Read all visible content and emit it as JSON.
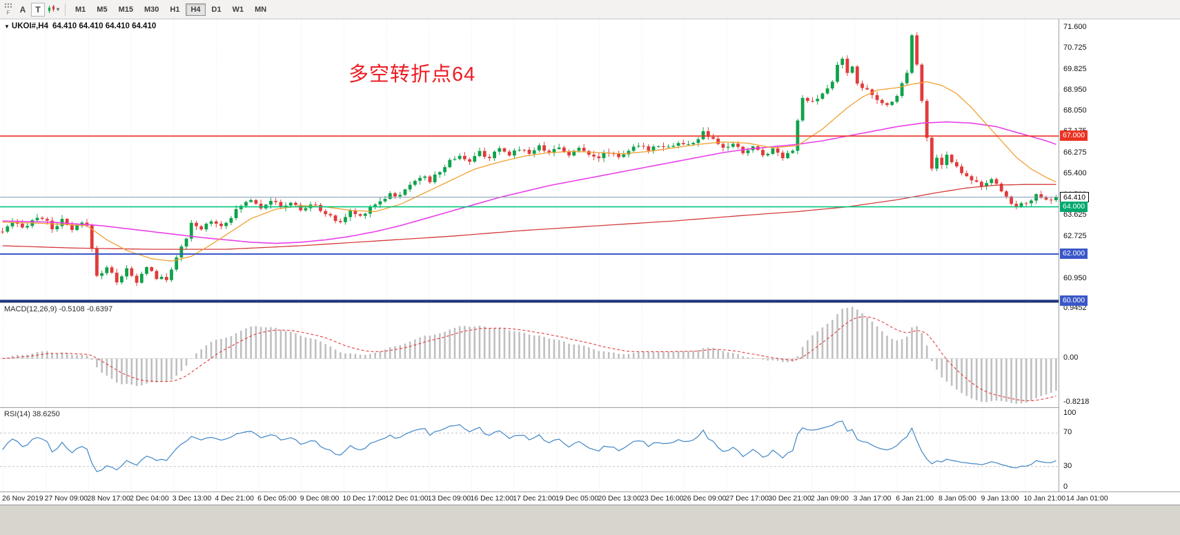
{
  "toolbar": {
    "corner_label": "F",
    "arrow_tool_label": "A",
    "text_tool_label": "T",
    "timeframes": [
      "M1",
      "M5",
      "M15",
      "M30",
      "H1",
      "H4",
      "D1",
      "W1",
      "MN"
    ],
    "active_timeframe": "H4"
  },
  "chart_data": {
    "type": "candlestick",
    "symbol_label": "UKOI#,H4",
    "ohlc_label": "64.410 64.410 64.410 64.410",
    "last_price": 64.41,
    "bars_total": 213,
    "annotation": {
      "text": "多空转折点64",
      "color": "#ed1c24"
    },
    "colors": {
      "up": "#0fa24a",
      "down": "#e13b3b",
      "ma_fast": "#f0a030",
      "ma_mid": "#e93ee9",
      "ma_slow": "#d43b3b",
      "grid": "#ebebeb"
    },
    "price_axis": {
      "min": 59.95,
      "max": 71.95,
      "ticks": [
        71.6,
        70.725,
        69.825,
        68.95,
        68.05,
        67.175,
        66.275,
        65.4,
        64.5,
        63.625,
        62.725,
        61.85,
        60.95,
        60.075
      ]
    },
    "hlines": [
      {
        "price": 67.0,
        "label": "67.000",
        "color": "#ea3323",
        "width": 1.6,
        "tag_bg": "#ea3323",
        "tag_fg": "#ffffff"
      },
      {
        "price": 64.41,
        "label": "64.410",
        "color": "#7e99b0",
        "width": 1,
        "tag_bg": "#ffffff",
        "tag_fg": "#000000",
        "tag_border": "#000000"
      },
      {
        "price": 64.0,
        "label": "64.000",
        "color": "#00c57e",
        "width": 1.6,
        "tag_bg": "#00a86d",
        "tag_fg": "#ffffff"
      },
      {
        "price": 62.0,
        "label": "62.000",
        "color": "#3a57c8",
        "width": 2,
        "tag_bg": "#3a57c8",
        "tag_fg": "#ffffff"
      },
      {
        "price": 60.0,
        "label": "60.000",
        "color": "#20367f",
        "width": 4,
        "tag_bg": "#3a57c8",
        "tag_fg": "#ffffff"
      }
    ],
    "price_path": [
      [
        0,
        62.95
      ],
      [
        2,
        63.3
      ],
      [
        4,
        63.1
      ],
      [
        6,
        63.45
      ],
      [
        8,
        63.55
      ],
      [
        10,
        63.1
      ],
      [
        12,
        63.4
      ],
      [
        14,
        63.0
      ],
      [
        16,
        63.3
      ],
      [
        17,
        63.15
      ],
      [
        18,
        62.3
      ],
      [
        19,
        61.05
      ],
      [
        21,
        61.45
      ],
      [
        23,
        60.85
      ],
      [
        25,
        61.35
      ],
      [
        27,
        60.75
      ],
      [
        29,
        61.5
      ],
      [
        31,
        61.0
      ],
      [
        33,
        60.9
      ],
      [
        35,
        61.9
      ],
      [
        37,
        62.6
      ],
      [
        38,
        63.25
      ],
      [
        40,
        63.05
      ],
      [
        42,
        63.45
      ],
      [
        44,
        63.2
      ],
      [
        46,
        63.6
      ],
      [
        48,
        64.05
      ],
      [
        50,
        64.35
      ],
      [
        52,
        64.0
      ],
      [
        54,
        64.3
      ],
      [
        56,
        63.95
      ],
      [
        58,
        64.2
      ],
      [
        60,
        63.85
      ],
      [
        62,
        64.1
      ],
      [
        64,
        63.9
      ],
      [
        66,
        63.55
      ],
      [
        68,
        63.35
      ],
      [
        70,
        63.8
      ],
      [
        72,
        63.6
      ],
      [
        74,
        64.0
      ],
      [
        76,
        64.25
      ],
      [
        78,
        64.55
      ],
      [
        80,
        64.45
      ],
      [
        82,
        65.0
      ],
      [
        84,
        65.3
      ],
      [
        86,
        65.1
      ],
      [
        88,
        65.5
      ],
      [
        90,
        65.95
      ],
      [
        92,
        66.2
      ],
      [
        94,
        65.9
      ],
      [
        96,
        66.3
      ],
      [
        98,
        66.1
      ],
      [
        100,
        66.4
      ],
      [
        102,
        66.2
      ],
      [
        104,
        66.5
      ],
      [
        106,
        66.3
      ],
      [
        108,
        66.55
      ],
      [
        110,
        66.35
      ],
      [
        112,
        66.5
      ],
      [
        114,
        66.25
      ],
      [
        116,
        66.45
      ],
      [
        118,
        66.3
      ],
      [
        120,
        66.1
      ],
      [
        122,
        66.35
      ],
      [
        124,
        66.15
      ],
      [
        126,
        66.4
      ],
      [
        128,
        66.55
      ],
      [
        130,
        66.45
      ],
      [
        132,
        66.65
      ],
      [
        134,
        66.55
      ],
      [
        136,
        66.7
      ],
      [
        138,
        66.6
      ],
      [
        140,
        66.9
      ],
      [
        141,
        67.15
      ],
      [
        143,
        66.8
      ],
      [
        145,
        66.5
      ],
      [
        147,
        66.65
      ],
      [
        149,
        66.3
      ],
      [
        151,
        66.55
      ],
      [
        153,
        66.2
      ],
      [
        155,
        66.45
      ],
      [
        157,
        66.15
      ],
      [
        159,
        66.45
      ],
      [
        160,
        67.6
      ],
      [
        161,
        68.6
      ],
      [
        163,
        68.4
      ],
      [
        165,
        68.75
      ],
      [
        167,
        69.3
      ],
      [
        168,
        70.0
      ],
      [
        169,
        70.35
      ],
      [
        170,
        69.6
      ],
      [
        171,
        69.95
      ],
      [
        172,
        69.3
      ],
      [
        174,
        68.9
      ],
      [
        176,
        68.5
      ],
      [
        178,
        68.3
      ],
      [
        180,
        68.75
      ],
      [
        182,
        69.7
      ],
      [
        183,
        71.35
      ],
      [
        184,
        70.1
      ],
      [
        185,
        68.5
      ],
      [
        186,
        66.9
      ],
      [
        187,
        65.6
      ],
      [
        188,
        66.15
      ],
      [
        189,
        65.75
      ],
      [
        190,
        66.2
      ],
      [
        191,
        65.9
      ],
      [
        193,
        65.5
      ],
      [
        195,
        65.2
      ],
      [
        197,
        64.9
      ],
      [
        199,
        65.1
      ],
      [
        201,
        64.7
      ],
      [
        202,
        64.4
      ],
      [
        204,
        64.0
      ],
      [
        206,
        64.2
      ],
      [
        208,
        64.45
      ],
      [
        210,
        64.25
      ],
      [
        212,
        64.41
      ]
    ],
    "ma_fast_path": [
      [
        0,
        63.35
      ],
      [
        8,
        63.3
      ],
      [
        17,
        63.2
      ],
      [
        21,
        62.6
      ],
      [
        25,
        62.15
      ],
      [
        30,
        61.8
      ],
      [
        34,
        61.7
      ],
      [
        38,
        61.9
      ],
      [
        42,
        62.4
      ],
      [
        46,
        62.95
      ],
      [
        50,
        63.5
      ],
      [
        55,
        63.9
      ],
      [
        60,
        64.05
      ],
      [
        65,
        64.0
      ],
      [
        70,
        63.85
      ],
      [
        75,
        63.8
      ],
      [
        80,
        64.1
      ],
      [
        85,
        64.6
      ],
      [
        90,
        65.1
      ],
      [
        95,
        65.6
      ],
      [
        100,
        65.9
      ],
      [
        105,
        66.15
      ],
      [
        110,
        66.3
      ],
      [
        115,
        66.35
      ],
      [
        120,
        66.3
      ],
      [
        125,
        66.25
      ],
      [
        130,
        66.35
      ],
      [
        135,
        66.5
      ],
      [
        140,
        66.65
      ],
      [
        145,
        66.75
      ],
      [
        150,
        66.7
      ],
      [
        155,
        66.5
      ],
      [
        160,
        66.6
      ],
      [
        165,
        67.3
      ],
      [
        170,
        68.2
      ],
      [
        173,
        68.65
      ],
      [
        176,
        68.95
      ],
      [
        180,
        69.05
      ],
      [
        183,
        69.2
      ],
      [
        186,
        69.3
      ],
      [
        189,
        69.15
      ],
      [
        192,
        68.8
      ],
      [
        195,
        68.2
      ],
      [
        198,
        67.5
      ],
      [
        201,
        66.8
      ],
      [
        204,
        66.1
      ],
      [
        207,
        65.6
      ],
      [
        210,
        65.25
      ],
      [
        212,
        65.05
      ]
    ],
    "ma_mid_path": [
      [
        0,
        63.4
      ],
      [
        10,
        63.35
      ],
      [
        20,
        63.2
      ],
      [
        30,
        62.95
      ],
      [
        40,
        62.7
      ],
      [
        50,
        62.5
      ],
      [
        55,
        62.45
      ],
      [
        60,
        62.5
      ],
      [
        65,
        62.6
      ],
      [
        70,
        62.75
      ],
      [
        75,
        62.95
      ],
      [
        80,
        63.2
      ],
      [
        85,
        63.5
      ],
      [
        90,
        63.8
      ],
      [
        95,
        64.1
      ],
      [
        100,
        64.4
      ],
      [
        105,
        64.65
      ],
      [
        110,
        64.9
      ],
      [
        115,
        65.1
      ],
      [
        120,
        65.3
      ],
      [
        125,
        65.5
      ],
      [
        130,
        65.7
      ],
      [
        135,
        65.9
      ],
      [
        140,
        66.1
      ],
      [
        145,
        66.3
      ],
      [
        150,
        66.45
      ],
      [
        155,
        66.55
      ],
      [
        160,
        66.65
      ],
      [
        165,
        66.8
      ],
      [
        170,
        67.0
      ],
      [
        175,
        67.2
      ],
      [
        180,
        67.4
      ],
      [
        185,
        67.55
      ],
      [
        190,
        67.6
      ],
      [
        195,
        67.55
      ],
      [
        200,
        67.4
      ],
      [
        205,
        67.1
      ],
      [
        210,
        66.8
      ],
      [
        212,
        66.65
      ]
    ],
    "ma_slow_path": [
      [
        0,
        62.35
      ],
      [
        15,
        62.25
      ],
      [
        30,
        62.2
      ],
      [
        45,
        62.2
      ],
      [
        60,
        62.35
      ],
      [
        75,
        62.55
      ],
      [
        90,
        62.75
      ],
      [
        105,
        63.0
      ],
      [
        120,
        63.2
      ],
      [
        135,
        63.4
      ],
      [
        150,
        63.65
      ],
      [
        160,
        63.8
      ],
      [
        170,
        64.0
      ],
      [
        180,
        64.3
      ],
      [
        188,
        64.6
      ],
      [
        194,
        64.8
      ],
      [
        200,
        64.92
      ],
      [
        206,
        64.95
      ],
      [
        212,
        64.95
      ]
    ],
    "x_ticks": [
      "26 Nov 2019",
      "27 Nov 09:00",
      "28 Nov 17:00",
      "2 Dec 04:00",
      "3 Dec 13:00",
      "4 Dec 21:00",
      "6 Dec 05:00",
      "9 Dec 08:00",
      "10 Dec 17:00",
      "12 Dec 01:00",
      "13 Dec 09:00",
      "16 Dec 12:00",
      "17 Dec 21:00",
      "19 Dec 05:00",
      "20 Dec 13:00",
      "23 Dec 16:00",
      "26 Dec 09:00",
      "27 Dec 17:00",
      "30 Dec 21:00",
      "2 Jan 09:00",
      "3 Jan 17:00",
      "6 Jan 21:00",
      "8 Jan 05:00",
      "9 Jan 13:00",
      "10 Jan 21:00",
      "14 Jan 01:00"
    ],
    "macd": {
      "label": "MACD(12,26,9) -0.5108 -0.6397",
      "fast": 12,
      "slow": 26,
      "signal_period": 9,
      "hist_color": "#bfbfbf",
      "signal_color": "#e13b3b",
      "scale_max_label": "0.9452",
      "scale_zero_label": "0.00",
      "scale_min_label": "-0.8218"
    },
    "rsi": {
      "label": "RSI(14) 38.6250",
      "period": 14,
      "color": "#3f86c6",
      "levels": [
        70,
        30
      ],
      "scale_labels": [
        "100",
        "70",
        "30",
        "0"
      ]
    }
  }
}
